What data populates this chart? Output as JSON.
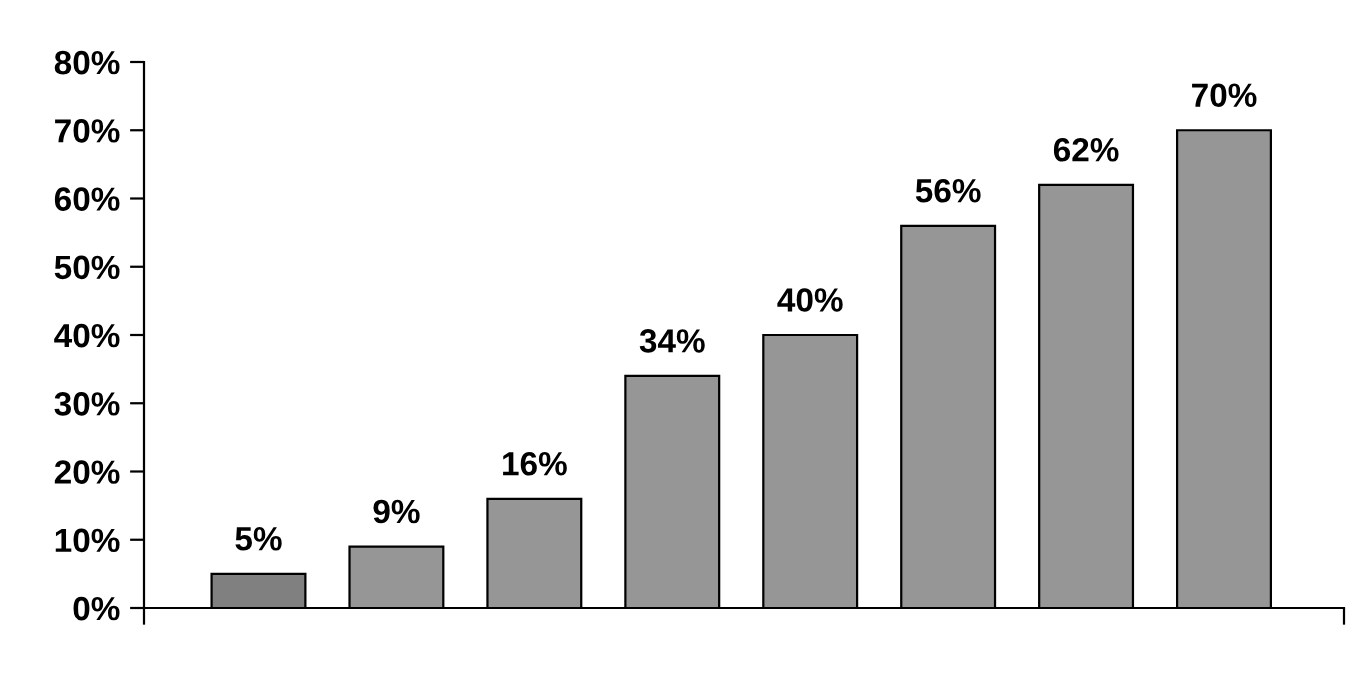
{
  "chart_data": {
    "type": "bar",
    "categories": [
      null,
      null,
      null,
      null,
      null,
      null,
      null,
      null
    ],
    "values": [
      5,
      9,
      16,
      34,
      40,
      56,
      62,
      70
    ],
    "colors": [
      "#808080",
      "#969696",
      "#969696",
      "#969696",
      "#969696",
      "#969696",
      "#969696",
      "#969696"
    ],
    "value_labels": [
      "5%",
      "9%",
      "16%",
      "34%",
      "40%",
      "56%",
      "62%",
      "70%"
    ],
    "ylim": [
      0,
      80
    ],
    "yticks": [
      {
        "value": 0,
        "label": "0%"
      },
      {
        "value": 10,
        "label": "10%"
      },
      {
        "value": 20,
        "label": "20%"
      },
      {
        "value": 30,
        "label": "30%"
      },
      {
        "value": 40,
        "label": "40%"
      },
      {
        "value": 50,
        "label": "50%"
      },
      {
        "value": 60,
        "label": "60%"
      },
      {
        "value": 70,
        "label": "70%"
      },
      {
        "value": 80,
        "label": "80%"
      }
    ],
    "grid": false
  }
}
